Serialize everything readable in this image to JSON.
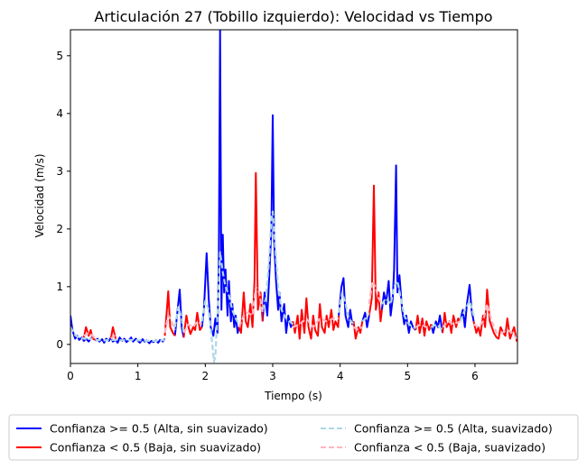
{
  "chart_data": {
    "type": "line",
    "title": "Articulación 27 (Tobillo izquierdo): Velocidad vs Tiempo",
    "xlabel": "Tiempo (s)",
    "ylabel": "Velocidad (m/s)",
    "xlim": [
      0,
      6.63
    ],
    "ylim": [
      -0.33,
      5.45
    ],
    "xticks": [
      0,
      1,
      2,
      3,
      4,
      5,
      6
    ],
    "yticks": [
      0,
      1,
      2,
      3,
      4,
      5
    ],
    "grid": false,
    "legend_position": "bottom, below plot, 2 columns",
    "series": [
      {
        "name": "Confianza >= 0.5 (Alta, sin suavizado)",
        "color": "#0000ff",
        "style": "solid",
        "segments": [
          {
            "x": [
              0,
              0.03,
              0.07,
              0.1,
              0.13,
              0.17,
              0.2,
              0.23,
              0.27,
              0.3,
              0.33
            ],
            "y": [
              0.5,
              0.25,
              0.1,
              0.15,
              0.08,
              0.12,
              0.06,
              0.1,
              0.05,
              0.1,
              0.12
            ]
          },
          {
            "x": [
              0.37,
              0.4,
              0.43,
              0.47,
              0.5,
              0.53,
              0.57,
              0.6,
              0.63,
              0.67,
              0.7,
              0.73,
              0.77,
              0.8,
              0.83,
              0.87,
              0.9,
              0.93,
              0.97,
              1.0,
              1.03,
              1.07,
              1.1,
              1.13,
              1.17,
              1.2,
              1.23,
              1.27,
              1.3,
              1.33,
              1.37,
              1.4
            ],
            "y": [
              0.06,
              0.1,
              0.05,
              0.09,
              0.03,
              0.1,
              0.06,
              0.12,
              0.05,
              0.08,
              0.03,
              0.12,
              0.06,
              0.1,
              0.04,
              0.08,
              0.12,
              0.05,
              0.1,
              0.06,
              0.03,
              0.09,
              0.05,
              0.07,
              0.02,
              0.06,
              0.04,
              0.07,
              0.03,
              0.08,
              0.05,
              0.1
            ]
          },
          {
            "x": [
              1.55,
              1.58,
              1.62,
              1.65,
              1.68
            ],
            "y": [
              0.15,
              0.5,
              0.95,
              0.3,
              0.12
            ]
          },
          {
            "x": [
              1.95,
              1.98,
              2.02,
              2.05,
              2.08,
              2.12,
              2.15,
              2.18,
              2.2,
              2.22,
              2.24,
              2.26,
              2.28,
              2.3,
              2.33,
              2.35,
              2.38,
              2.4,
              2.43,
              2.45,
              2.48,
              2.5
            ],
            "y": [
              0.3,
              0.6,
              1.58,
              0.8,
              0.3,
              0.15,
              0.45,
              0.2,
              1.4,
              5.45,
              0.6,
              1.9,
              0.9,
              1.3,
              0.5,
              1.1,
              0.4,
              0.7,
              0.3,
              0.5,
              0.2,
              0.3
            ]
          },
          {
            "x": [
              2.85,
              2.88,
              2.92,
              2.95,
              2.98,
              3.0,
              3.02,
              3.05,
              3.08,
              3.1,
              3.13,
              3.17,
              3.2,
              3.23,
              3.27,
              3.3
            ],
            "y": [
              0.4,
              0.9,
              0.5,
              1.2,
              2.0,
              3.97,
              1.8,
              1.1,
              0.6,
              0.9,
              0.4,
              0.7,
              0.2,
              0.5,
              0.3,
              0.4
            ]
          },
          {
            "x": [
              3.98,
              4.02,
              4.05,
              4.08,
              4.12,
              4.15,
              4.18,
              4.2
            ],
            "y": [
              0.5,
              1.0,
              1.15,
              0.5,
              0.3,
              0.6,
              0.35,
              0.4
            ]
          },
          {
            "x": [
              4.33,
              4.37,
              4.4,
              4.43
            ],
            "y": [
              0.4,
              0.55,
              0.3,
              0.5
            ]
          },
          {
            "x": [
              4.62,
              4.65,
              4.68,
              4.72,
              4.75,
              4.78,
              4.8,
              4.83,
              4.85,
              4.88,
              4.92,
              4.95,
              4.98,
              5.02,
              5.05,
              5.08,
              5.12
            ],
            "y": [
              0.6,
              0.9,
              0.7,
              1.1,
              0.5,
              0.8,
              1.3,
              3.1,
              0.9,
              1.2,
              0.6,
              0.35,
              0.5,
              0.2,
              0.4,
              0.3,
              0.25
            ]
          },
          {
            "x": [
              5.35,
              5.38,
              5.42,
              5.45,
              5.48,
              5.52
            ],
            "y": [
              0.35,
              0.2,
              0.4,
              0.3,
              0.5,
              0.2
            ]
          },
          {
            "x": [
              5.78,
              5.82,
              5.85,
              5.88,
              5.92,
              5.95,
              5.98
            ],
            "y": [
              0.4,
              0.6,
              0.3,
              0.7,
              1.03,
              0.6,
              0.4
            ]
          }
        ]
      },
      {
        "name": "Confianza < 0.5 (Baja, sin suavizado)",
        "color": "#ff0000",
        "style": "solid",
        "segments": [
          {
            "x": [
              0.2,
              0.23,
              0.27,
              0.3,
              0.33,
              0.37
            ],
            "y": [
              0.12,
              0.3,
              0.15,
              0.25,
              0.1,
              0.08
            ]
          },
          {
            "x": [
              0.6,
              0.63,
              0.67
            ],
            "y": [
              0.1,
              0.3,
              0.1
            ]
          },
          {
            "x": [
              1.4,
              1.43,
              1.45,
              1.48,
              1.52,
              1.55
            ],
            "y": [
              0.15,
              0.6,
              0.92,
              0.3,
              0.2,
              0.15
            ]
          },
          {
            "x": [
              1.68,
              1.72,
              1.75,
              1.78,
              1.82,
              1.85,
              1.88,
              1.92,
              1.95
            ],
            "y": [
              0.12,
              0.5,
              0.3,
              0.18,
              0.3,
              0.25,
              0.55,
              0.25,
              0.3
            ]
          },
          {
            "x": [
              2.5,
              2.53,
              2.57,
              2.6,
              2.63,
              2.67,
              2.7,
              2.73,
              2.75,
              2.78,
              2.82,
              2.85
            ],
            "y": [
              0.3,
              0.2,
              0.9,
              0.4,
              0.3,
              0.7,
              0.3,
              1.1,
              2.97,
              0.6,
              0.9,
              0.4
            ]
          },
          {
            "x": [
              3.3,
              3.33,
              3.37,
              3.4,
              3.43,
              3.47,
              3.5,
              3.53,
              3.57,
              3.6,
              3.63,
              3.67,
              3.7,
              3.73,
              3.77,
              3.8,
              3.83,
              3.87,
              3.9,
              3.93,
              3.97,
              3.98
            ],
            "y": [
              0.4,
              0.2,
              0.5,
              0.1,
              0.6,
              0.2,
              0.8,
              0.3,
              0.1,
              0.5,
              0.25,
              0.15,
              0.7,
              0.3,
              0.2,
              0.5,
              0.3,
              0.6,
              0.25,
              0.4,
              0.3,
              0.5
            ]
          },
          {
            "x": [
              4.2,
              4.23,
              4.27,
              4.3,
              4.33
            ],
            "y": [
              0.4,
              0.1,
              0.3,
              0.2,
              0.4
            ]
          },
          {
            "x": [
              4.43,
              4.47,
              4.5,
              4.53,
              4.57,
              4.6,
              4.62
            ],
            "y": [
              0.5,
              0.8,
              2.75,
              0.6,
              0.9,
              0.4,
              0.6
            ]
          },
          {
            "x": [
              5.12,
              5.15,
              5.18,
              5.22,
              5.25,
              5.28,
              5.32,
              5.35
            ],
            "y": [
              0.25,
              0.5,
              0.2,
              0.45,
              0.15,
              0.4,
              0.25,
              0.35
            ]
          },
          {
            "x": [
              5.52,
              5.55,
              5.58,
              5.62,
              5.65,
              5.68,
              5.72,
              5.75,
              5.78
            ],
            "y": [
              0.2,
              0.55,
              0.3,
              0.4,
              0.2,
              0.5,
              0.3,
              0.45,
              0.4
            ]
          },
          {
            "x": [
              5.98,
              6.02,
              6.05,
              6.08,
              6.12,
              6.15,
              6.18,
              6.22,
              6.25,
              6.28,
              6.32,
              6.35,
              6.38,
              6.42,
              6.45,
              6.48,
              6.52,
              6.55,
              6.58,
              6.62
            ],
            "y": [
              0.4,
              0.2,
              0.3,
              0.15,
              0.5,
              0.3,
              0.95,
              0.4,
              0.3,
              0.2,
              0.12,
              0.1,
              0.3,
              0.2,
              0.15,
              0.45,
              0.1,
              0.2,
              0.3,
              0.05
            ]
          }
        ]
      },
      {
        "name": "Confianza >= 0.5 (Alta, suavizado)",
        "color": "#add8e6",
        "style": "dashed",
        "segments": [
          {
            "x": [
              0,
              0.07,
              0.13,
              0.2,
              0.27,
              0.33
            ],
            "y": [
              0.3,
              0.16,
              0.11,
              0.1,
              0.09,
              0.1
            ]
          },
          {
            "x": [
              0.37,
              0.5,
              0.63,
              0.77,
              0.9,
              1.03,
              1.17,
              1.3,
              1.4
            ],
            "y": [
              0.08,
              0.07,
              0.08,
              0.07,
              0.08,
              0.07,
              0.06,
              0.06,
              0.08
            ]
          },
          {
            "x": [
              1.55,
              1.6,
              1.65,
              1.68
            ],
            "y": [
              0.3,
              0.65,
              0.45,
              0.2
            ]
          },
          {
            "x": [
              1.95,
              2.0,
              2.05,
              2.1,
              2.13,
              2.15,
              2.18,
              2.22,
              2.26,
              2.3,
              2.35,
              2.4,
              2.45,
              2.5
            ],
            "y": [
              0.4,
              0.75,
              0.6,
              0.05,
              -0.3,
              -0.2,
              0.5,
              1.6,
              1.25,
              1.0,
              0.85,
              0.6,
              0.45,
              0.35
            ]
          },
          {
            "x": [
              2.85,
              2.9,
              2.95,
              2.98,
              3.0,
              3.03,
              3.08,
              3.13,
              3.2,
              3.3
            ],
            "y": [
              0.6,
              0.8,
              1.5,
              2.2,
              2.3,
              1.8,
              1.0,
              0.6,
              0.45,
              0.35
            ]
          },
          {
            "x": [
              3.98,
              4.03,
              4.08,
              4.13,
              4.2
            ],
            "y": [
              0.55,
              0.9,
              0.7,
              0.45,
              0.35
            ]
          },
          {
            "x": [
              4.33,
              4.38,
              4.43
            ],
            "y": [
              0.4,
              0.45,
              0.55
            ]
          },
          {
            "x": [
              4.62,
              4.68,
              4.75,
              4.8,
              4.85,
              4.9,
              4.95,
              5.02,
              5.12
            ],
            "y": [
              0.7,
              0.8,
              0.7,
              1.0,
              1.1,
              0.8,
              0.5,
              0.35,
              0.28
            ]
          },
          {
            "x": [
              5.35,
              5.43,
              5.52
            ],
            "y": [
              0.3,
              0.35,
              0.25
            ]
          },
          {
            "x": [
              5.78,
              5.85,
              5.92,
              5.98
            ],
            "y": [
              0.4,
              0.6,
              0.75,
              0.5
            ]
          }
        ]
      },
      {
        "name": "Confianza < 0.5 (Baja, suavizado)",
        "color": "#ffb6c1",
        "style": "dashed",
        "segments": [
          {
            "x": [
              0.2,
              0.27,
              0.33,
              0.37
            ],
            "y": [
              0.15,
              0.2,
              0.15,
              0.1
            ]
          },
          {
            "x": [
              0.6,
              0.65,
              0.7
            ],
            "y": [
              0.1,
              0.15,
              0.1
            ]
          },
          {
            "x": [
              1.4,
              1.45,
              1.5,
              1.55
            ],
            "y": [
              0.2,
              0.5,
              0.4,
              0.25
            ]
          },
          {
            "x": [
              1.68,
              1.75,
              1.82,
              1.88,
              1.95
            ],
            "y": [
              0.2,
              0.35,
              0.3,
              0.4,
              0.35
            ]
          },
          {
            "x": [
              2.5,
              2.57,
              2.63,
              2.7,
              2.75,
              2.8,
              2.85
            ],
            "y": [
              0.3,
              0.5,
              0.55,
              0.5,
              1.0,
              0.9,
              0.55
            ]
          },
          {
            "x": [
              3.3,
              3.4,
              3.5,
              3.6,
              3.7,
              3.8,
              3.9,
              3.98
            ],
            "y": [
              0.3,
              0.35,
              0.45,
              0.3,
              0.45,
              0.4,
              0.45,
              0.45
            ]
          },
          {
            "x": [
              4.2,
              4.27,
              4.33
            ],
            "y": [
              0.3,
              0.25,
              0.3
            ]
          },
          {
            "x": [
              4.43,
              4.48,
              4.52,
              4.57,
              4.62
            ],
            "y": [
              0.7,
              1.1,
              1.0,
              0.8,
              0.7
            ]
          },
          {
            "x": [
              5.12,
              5.2,
              5.28,
              5.35
            ],
            "y": [
              0.3,
              0.35,
              0.3,
              0.3
            ]
          },
          {
            "x": [
              5.52,
              5.6,
              5.68,
              5.78
            ],
            "y": [
              0.3,
              0.4,
              0.35,
              0.4
            ]
          },
          {
            "x": [
              5.98,
              6.05,
              6.12,
              6.18,
              6.25,
              6.32,
              6.4,
              6.48,
              6.55,
              6.62
            ],
            "y": [
              0.35,
              0.3,
              0.4,
              0.7,
              0.4,
              0.2,
              0.2,
              0.25,
              0.2,
              0.1
            ]
          }
        ]
      }
    ]
  }
}
